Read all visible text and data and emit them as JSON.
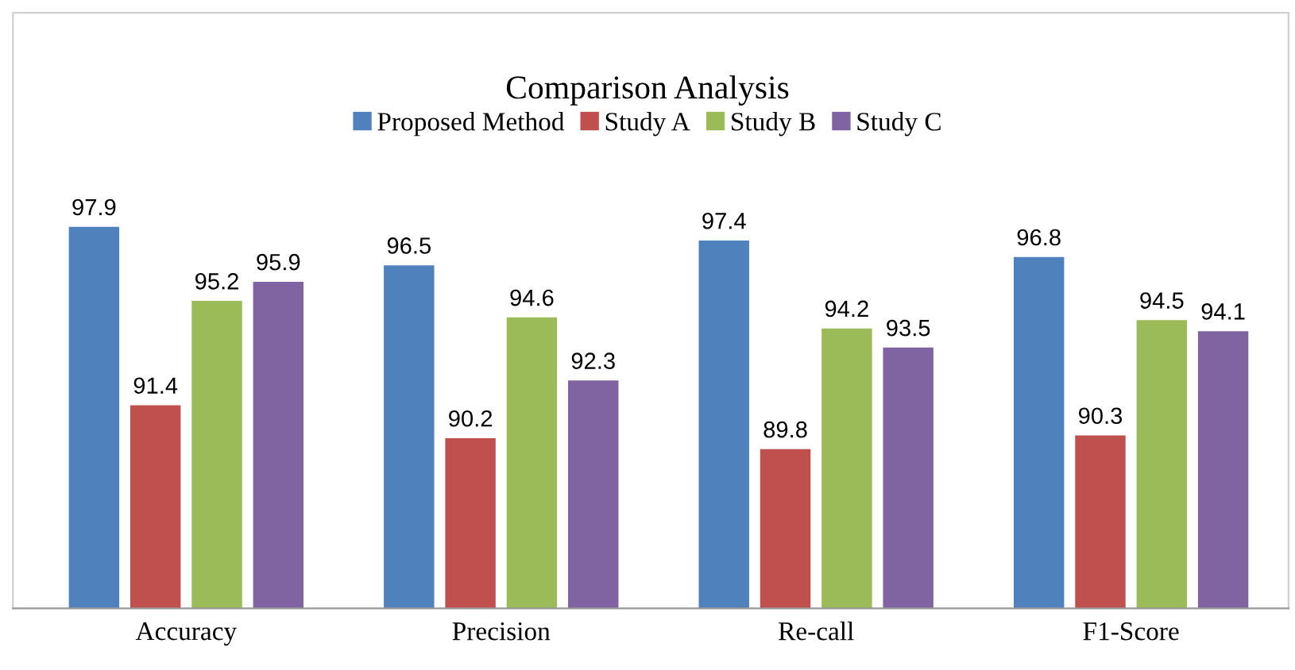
{
  "chart_data": {
    "type": "bar",
    "title": "Comparison Analysis",
    "categories": [
      "Accuracy",
      "Precision",
      "Re-call",
      "F1-Score"
    ],
    "series": [
      {
        "name": "Proposed Method",
        "color": "#4f81bd",
        "values": [
          97.9,
          96.5,
          97.4,
          96.8
        ]
      },
      {
        "name": "Study A",
        "color": "#c0504d",
        "values": [
          91.4,
          90.2,
          89.8,
          90.3
        ]
      },
      {
        "name": "Study B",
        "color": "#9bbb59",
        "values": [
          95.2,
          94.6,
          94.2,
          94.5
        ]
      },
      {
        "name": "Study C",
        "color": "#8064a2",
        "values": [
          95.9,
          92.3,
          93.5,
          94.1
        ]
      }
    ],
    "ylim": [
      84,
      105.7
    ],
    "tick_labels": "x",
    "data_labels": true,
    "legend": "top",
    "grid": false
  }
}
